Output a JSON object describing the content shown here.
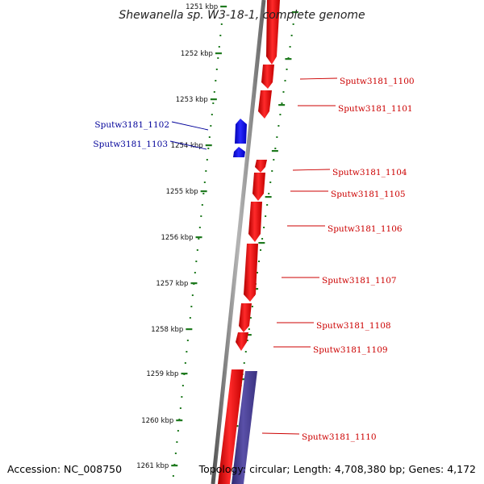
{
  "title": "Shewanella sp. W3-18-1, complete genome",
  "accession": "Accession: NC_008750",
  "topology": "Topology: circular; Length: 4,708,380 bp; Genes: 4,172",
  "ticks": [
    {
      "label": "1251 kbp",
      "kbp": 1251
    },
    {
      "label": "1252 kbp",
      "kbp": 1252
    },
    {
      "label": "1253 kbp",
      "kbp": 1253
    },
    {
      "label": "1254 kbp",
      "kbp": 1254
    },
    {
      "label": "1255 kbp",
      "kbp": 1255
    },
    {
      "label": "1256 kbp",
      "kbp": 1256
    },
    {
      "label": "1257 kbp",
      "kbp": 1257
    },
    {
      "label": "1258 kbp",
      "kbp": 1258
    },
    {
      "label": "1259 kbp",
      "kbp": 1259
    },
    {
      "label": "1260 kbp",
      "kbp": 1260
    },
    {
      "label": "1261 kbp",
      "kbp": 1261
    }
  ],
  "genes": [
    {
      "label": "Sputw3181_1100",
      "strand": "forward",
      "color": "#cc0000"
    },
    {
      "label": "Sputw3181_1101",
      "strand": "forward",
      "color": "#cc0000"
    },
    {
      "label": "Sputw3181_1102",
      "strand": "reverse",
      "color": "#000099"
    },
    {
      "label": "Sputw3181_1103",
      "strand": "reverse",
      "color": "#000099"
    },
    {
      "label": "Sputw3181_1104",
      "strand": "forward",
      "color": "#cc0000"
    },
    {
      "label": "Sputw3181_1105",
      "strand": "forward",
      "color": "#cc0000"
    },
    {
      "label": "Sputw3181_1106",
      "strand": "forward",
      "color": "#cc0000"
    },
    {
      "label": "Sputw3181_1107",
      "strand": "forward",
      "color": "#cc0000"
    },
    {
      "label": "Sputw3181_1108",
      "strand": "forward",
      "color": "#cc0000"
    },
    {
      "label": "Sputw3181_1109",
      "strand": "forward",
      "color": "#cc0000"
    },
    {
      "label": "Sputw3181_1110",
      "strand": "forward",
      "color": "#cc0000"
    }
  ],
  "colors": {
    "forward_feature": "#ee1111",
    "reverse_feature": "#1111ee",
    "rna_feature": "#4a3f8f",
    "backbone": "#777777",
    "tick": "#1f7a1f"
  }
}
